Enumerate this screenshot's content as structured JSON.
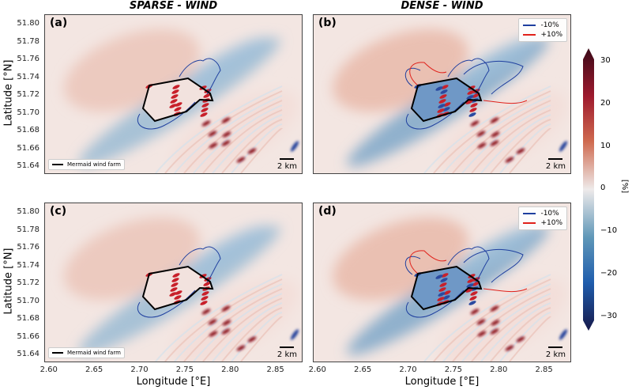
{
  "chart_data": {
    "type": "heatmap",
    "column_titles": [
      "SPARSE - WIND",
      "DENSE - WIND"
    ],
    "panels": [
      {
        "label": "(a)",
        "legend": "farm",
        "variant": "sparse"
      },
      {
        "label": "(b)",
        "legend": "contour",
        "variant": "dense"
      },
      {
        "label": "(c)",
        "legend": "farm",
        "variant": "sparse"
      },
      {
        "label": "(d)",
        "legend": "contour",
        "variant": "dense"
      }
    ],
    "xlabel": "Longitude [°E]",
    "ylabel": "Latitude [°N]",
    "xlim": [
      2.595,
      2.88
    ],
    "ylim": [
      51.632,
      51.812
    ],
    "xticks": [
      "2.60",
      "2.65",
      "2.70",
      "2.75",
      "2.80",
      "2.85"
    ],
    "yticks": [
      "51.80",
      "51.78",
      "51.76",
      "51.74",
      "51.72",
      "51.70",
      "51.68",
      "51.66",
      "51.64"
    ],
    "legend_farm": "Mermaid wind farm",
    "legend_contours": [
      {
        "label": "-10%",
        "color": "#1f3f9f"
      },
      {
        "label": "+10%",
        "color": "#e0201a"
      }
    ],
    "scale_bar": "2 km",
    "colorbar": {
      "label": "[%]",
      "range": [
        -30,
        30
      ],
      "ticks": [
        "30",
        "20",
        "10",
        "0",
        "−10",
        "−20",
        "−30"
      ],
      "colormap": "diverging blue-white-red",
      "extend": "both"
    }
  }
}
